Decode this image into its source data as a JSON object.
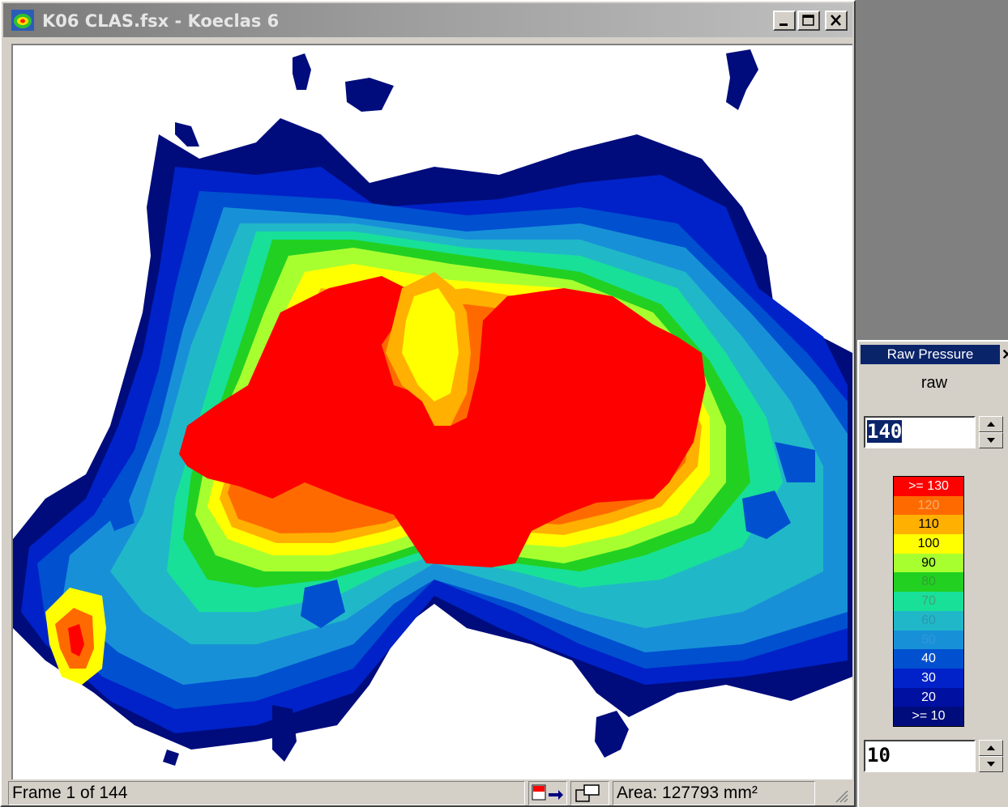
{
  "window": {
    "title": "K06 CLAS.fsx - Koeclas  6",
    "icon": "app-logo-icon",
    "controls": [
      "minimize-icon",
      "maximize-icon",
      "close-icon"
    ]
  },
  "status_bar": {
    "frame": "Frame 1 of 144",
    "area": "Area: 127793 mm²"
  },
  "legend": {
    "title": "Raw Pressure",
    "mode": "raw",
    "max_value": "140",
    "min_value": "10",
    "scale": [
      {
        "label": ">= 130",
        "color": "#ff0000",
        "text": "#ffffff"
      },
      {
        "label": "120",
        "color": "#ff6a00",
        "text": "#f0b070"
      },
      {
        "label": "110",
        "color": "#ffb000",
        "text": "#000000"
      },
      {
        "label": "100",
        "color": "#ffff00",
        "text": "#000000"
      },
      {
        "label": "90",
        "color": "#a8ff30",
        "text": "#000000"
      },
      {
        "label": "80",
        "color": "#22d022",
        "text": "#30a030"
      },
      {
        "label": "70",
        "color": "#18e098",
        "text": "#40a080"
      },
      {
        "label": "60",
        "color": "#20b8c8",
        "text": "#2898b0"
      },
      {
        "label": "50",
        "color": "#1890d8",
        "text": "#3098d8"
      },
      {
        "label": "40",
        "color": "#0050d0",
        "text": "#ffffff"
      },
      {
        "label": "30",
        "color": "#0022c8",
        "text": "#ffffff"
      },
      {
        "label": "20",
        "color": "#0010a0",
        "text": "#ffffff"
      },
      {
        "label": ">= 10",
        "color": "#000c7c",
        "text": "#ffffff"
      }
    ]
  }
}
